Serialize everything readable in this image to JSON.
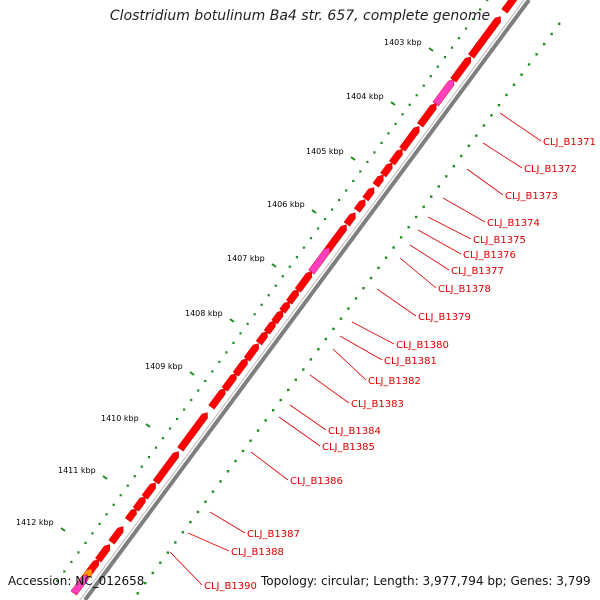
{
  "title": "Clostridium botulinum Ba4 str. 657, complete genome",
  "accession_label": "Accession: NC_012658",
  "topology_label": "Topology: circular; Length: 3,977,794 bp; Genes: 3,799",
  "colors": {
    "backbone": "#7f7f7f",
    "gene": "#ff0000",
    "gene_alt": "#ff3fbf",
    "gene_other": "#ff9900",
    "tick_dot": "#1e8c1e",
    "label": "#e00000"
  },
  "scale": {
    "unit_labels": [
      "1403 kbp",
      "1404 kbp",
      "1405 kbp",
      "1406 kbp",
      "1407 kbp",
      "1408 kbp",
      "1409 kbp",
      "1410 kbp",
      "1411 kbp",
      "1412 kbp"
    ]
  },
  "gene_labels": [
    "CLJ_B1371",
    "CLJ_B1372",
    "CLJ_B1373",
    "CLJ_B1374",
    "CLJ_B1375",
    "CLJ_B1376",
    "CLJ_B1377",
    "CLJ_B1378",
    "CLJ_B1379",
    "CLJ_B1380",
    "CLJ_B1381",
    "CLJ_B1382",
    "CLJ_B1383",
    "CLJ_B1384",
    "CLJ_B1385",
    "CLJ_B1386",
    "CLJ_B1387",
    "CLJ_B1388",
    "CLJ_B1390"
  ]
}
